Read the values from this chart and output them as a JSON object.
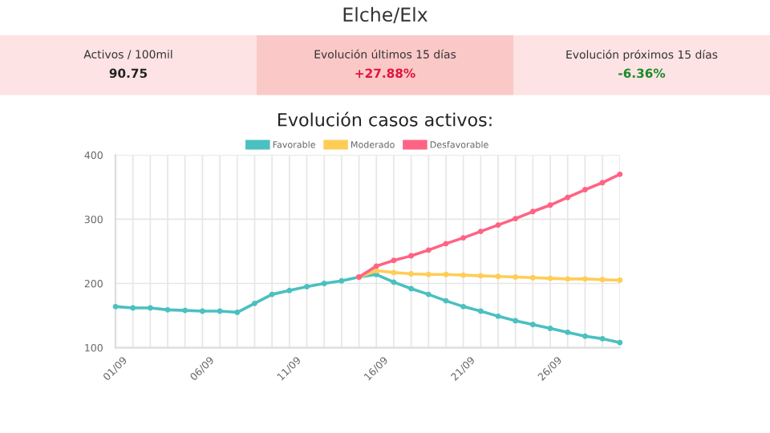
{
  "chart_data": [
    {
      "type": "other",
      "title": "Elche/Elx",
      "annotations": [
        "Activos / 100mil",
        "90.75",
        "Evolución últimos 15 días",
        "+27.88%",
        "Evolución próximos 15 días",
        "-6.36%"
      ],
      "colors": [
        "#fde3e3",
        "#fbc8c8",
        "#fde3e3"
      ]
    },
    {
      "type": "line",
      "title": "Evolución casos activos:",
      "categories": [
        "01/09",
        null,
        null,
        null,
        null,
        "06/09",
        null,
        null,
        null,
        null,
        "11/09",
        null,
        null,
        null,
        null,
        "16/09",
        null,
        null,
        null,
        null,
        "21/09",
        null,
        null,
        null,
        null,
        "26/09",
        null,
        null,
        null,
        null
      ],
      "series": [
        {
          "name": "Favorable",
          "color": "#4bc0c0",
          "values": [
            164,
            162,
            162,
            159,
            158,
            157,
            157,
            155,
            169,
            183,
            189,
            195,
            200,
            204,
            210,
            214,
            202,
            192,
            183,
            173,
            164,
            157,
            149,
            142,
            136,
            130,
            124,
            118,
            114,
            108
          ]
        },
        {
          "name": "Moderado",
          "color": "#ffcd56",
          "values": [
            null,
            null,
            null,
            null,
            null,
            null,
            null,
            null,
            null,
            null,
            null,
            null,
            null,
            null,
            210,
            220,
            217,
            215,
            214,
            214,
            213,
            212,
            211,
            210,
            209,
            208,
            207,
            207,
            206,
            205
          ]
        },
        {
          "name": "Desfavorable",
          "color": "#ff6384",
          "values": [
            null,
            null,
            null,
            null,
            null,
            null,
            null,
            null,
            null,
            null,
            null,
            null,
            null,
            null,
            210,
            227,
            236,
            243,
            252,
            262,
            271,
            281,
            291,
            301,
            312,
            322,
            334,
            346,
            357,
            370
          ]
        }
      ],
      "ylim": [
        100,
        400
      ],
      "yticks": [
        100,
        200,
        300,
        400
      ],
      "grid": true,
      "legend": "top",
      "marker": "circle",
      "line_style": "solid"
    }
  ]
}
